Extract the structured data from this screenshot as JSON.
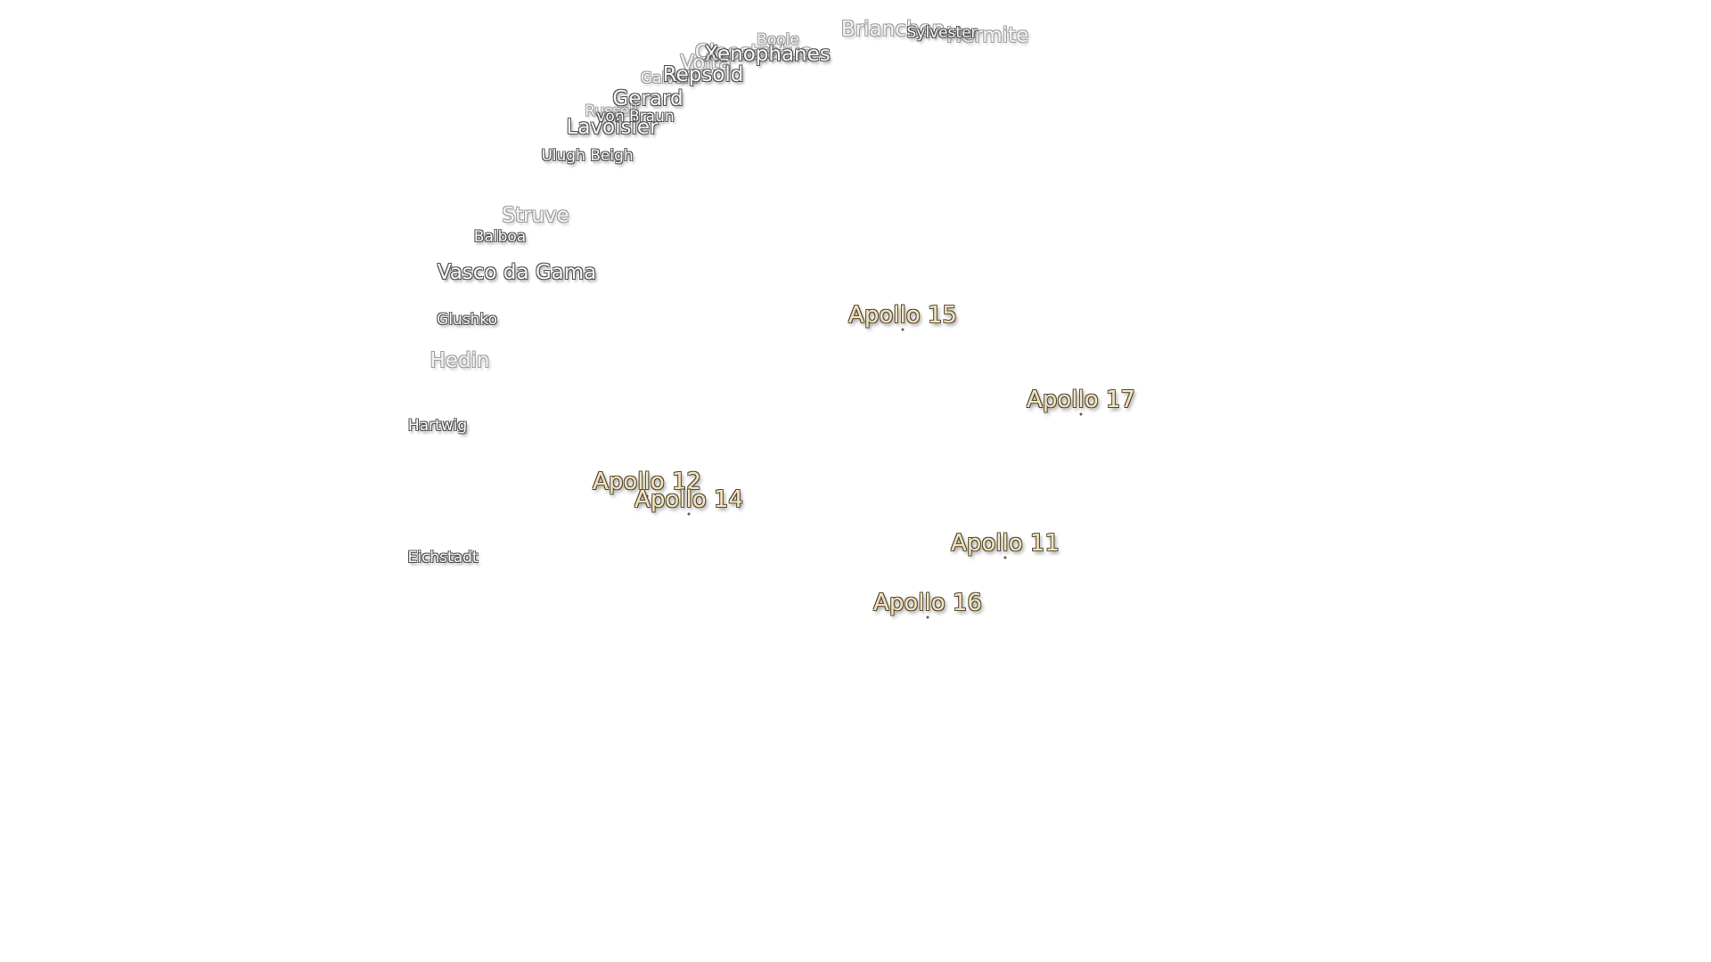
{
  "craters": [
    {
      "name": "Boole"
    },
    {
      "name": "Brianchon"
    },
    {
      "name": "Hermite"
    },
    {
      "name": "Sylvester"
    },
    {
      "name": "Cleostratus"
    },
    {
      "name": "Xenophanes"
    },
    {
      "name": "Volta"
    },
    {
      "name": "Galvani"
    },
    {
      "name": "Repsold"
    },
    {
      "name": "Gerard"
    },
    {
      "name": "Russell"
    },
    {
      "name": "von Braun"
    },
    {
      "name": "Lavoisier"
    },
    {
      "name": "Ulugh Beigh"
    },
    {
      "name": "Struve"
    },
    {
      "name": "Balboa"
    },
    {
      "name": "Vasco da Gama"
    },
    {
      "name": "Glushko"
    },
    {
      "name": "Hedin"
    },
    {
      "name": "Hartwig"
    },
    {
      "name": "Eichstadt"
    }
  ],
  "landing_sites": [
    {
      "name": "Apollo 15"
    },
    {
      "name": "Apollo 17"
    },
    {
      "name": "Apollo 12"
    },
    {
      "name": "Apollo 14"
    },
    {
      "name": "Apollo 11"
    },
    {
      "name": "Apollo 16"
    }
  ]
}
